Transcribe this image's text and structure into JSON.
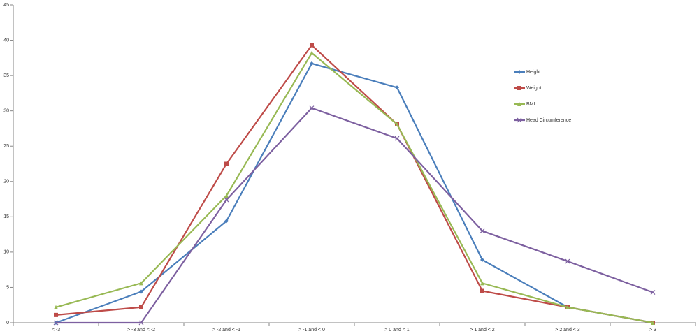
{
  "chart_data": {
    "type": "line",
    "categories": [
      "< -3",
      "> -3 and < -2",
      "> -2 and < -1",
      "> -1 and < 0",
      "> 0 and < 1",
      "> 1 and < 2",
      "> 2 and < 3",
      "> 3"
    ],
    "series": [
      {
        "name": "Height",
        "color": "#4a7ebb",
        "marker": "diamond",
        "values": [
          0,
          4.4,
          14.4,
          36.7,
          33.3,
          8.9,
          2.2,
          0
        ]
      },
      {
        "name": "Weight",
        "color": "#be4b48",
        "marker": "square",
        "values": [
          1.1,
          2.2,
          22.5,
          39.3,
          28.1,
          4.5,
          2.2,
          0
        ]
      },
      {
        "name": "BMI",
        "color": "#98b954",
        "marker": "triangle",
        "values": [
          2.2,
          5.6,
          18,
          38.2,
          28.1,
          5.6,
          2.2,
          0
        ]
      },
      {
        "name": "Head Circumference",
        "color": "#7d60a0",
        "marker": "x",
        "values": [
          0,
          0,
          17.4,
          30.4,
          26.1,
          13,
          8.7,
          4.3
        ]
      }
    ],
    "ylim": [
      0,
      45
    ],
    "yticks": [
      0,
      5,
      10,
      15,
      20,
      25,
      30,
      35,
      40,
      45
    ],
    "grid": false,
    "legend": "right"
  }
}
